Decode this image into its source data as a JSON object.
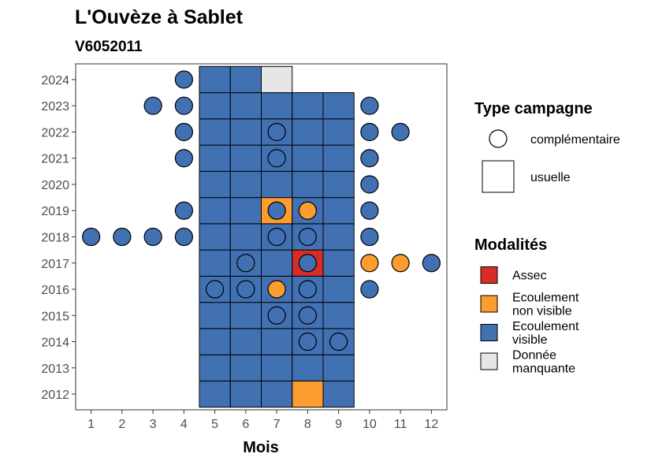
{
  "chart_data": {
    "type": "heatmap",
    "title": "L'Ouvèze à Sablet",
    "subtitle": "V6052011",
    "xlabel": "Mois",
    "ylabel": "",
    "x_ticks": [
      "1",
      "2",
      "3",
      "4",
      "5",
      "6",
      "7",
      "8",
      "9",
      "10",
      "11",
      "12"
    ],
    "y_ticks": [
      "2012",
      "2013",
      "2014",
      "2015",
      "2016",
      "2017",
      "2018",
      "2019",
      "2020",
      "2021",
      "2022",
      "2023",
      "2024"
    ],
    "xlim": [
      0.5,
      12.5
    ],
    "ylim": [
      2011.4,
      2024.6
    ],
    "grid": false,
    "colors": {
      "Assec": "#d62d27",
      "Ecoulement non visible": "#fd9c2f",
      "Ecoulement visible": "#4271b3",
      "Donnée manquante": "#e6e6e6"
    },
    "usuelle": [
      {
        "year": 2012,
        "month": 5,
        "modalite": "Ecoulement visible"
      },
      {
        "year": 2012,
        "month": 6,
        "modalite": "Ecoulement visible"
      },
      {
        "year": 2012,
        "month": 7,
        "modalite": "Ecoulement visible"
      },
      {
        "year": 2012,
        "month": 8,
        "modalite": "Ecoulement non visible"
      },
      {
        "year": 2012,
        "month": 9,
        "modalite": "Ecoulement visible"
      },
      {
        "year": 2013,
        "month": 5,
        "modalite": "Ecoulement visible"
      },
      {
        "year": 2013,
        "month": 6,
        "modalite": "Ecoulement visible"
      },
      {
        "year": 2013,
        "month": 7,
        "modalite": "Ecoulement visible"
      },
      {
        "year": 2013,
        "month": 8,
        "modalite": "Ecoulement visible"
      },
      {
        "year": 2013,
        "month": 9,
        "modalite": "Ecoulement visible"
      },
      {
        "year": 2014,
        "month": 5,
        "modalite": "Ecoulement visible"
      },
      {
        "year": 2014,
        "month": 6,
        "modalite": "Ecoulement visible"
      },
      {
        "year": 2014,
        "month": 7,
        "modalite": "Ecoulement visible"
      },
      {
        "year": 2014,
        "month": 8,
        "modalite": "Ecoulement visible"
      },
      {
        "year": 2014,
        "month": 9,
        "modalite": "Ecoulement visible"
      },
      {
        "year": 2015,
        "month": 5,
        "modalite": "Ecoulement visible"
      },
      {
        "year": 2015,
        "month": 6,
        "modalite": "Ecoulement visible"
      },
      {
        "year": 2015,
        "month": 7,
        "modalite": "Ecoulement visible"
      },
      {
        "year": 2015,
        "month": 8,
        "modalite": "Ecoulement visible"
      },
      {
        "year": 2015,
        "month": 9,
        "modalite": "Ecoulement visible"
      },
      {
        "year": 2016,
        "month": 5,
        "modalite": "Ecoulement visible"
      },
      {
        "year": 2016,
        "month": 6,
        "modalite": "Ecoulement visible"
      },
      {
        "year": 2016,
        "month": 7,
        "modalite": "Ecoulement visible"
      },
      {
        "year": 2016,
        "month": 8,
        "modalite": "Ecoulement visible"
      },
      {
        "year": 2016,
        "month": 9,
        "modalite": "Ecoulement visible"
      },
      {
        "year": 2017,
        "month": 5,
        "modalite": "Ecoulement visible"
      },
      {
        "year": 2017,
        "month": 6,
        "modalite": "Ecoulement visible"
      },
      {
        "year": 2017,
        "month": 7,
        "modalite": "Ecoulement visible"
      },
      {
        "year": 2017,
        "month": 8,
        "modalite": "Assec"
      },
      {
        "year": 2017,
        "month": 9,
        "modalite": "Ecoulement visible"
      },
      {
        "year": 2018,
        "month": 5,
        "modalite": "Ecoulement visible"
      },
      {
        "year": 2018,
        "month": 6,
        "modalite": "Ecoulement visible"
      },
      {
        "year": 2018,
        "month": 7,
        "modalite": "Ecoulement visible"
      },
      {
        "year": 2018,
        "month": 8,
        "modalite": "Ecoulement visible"
      },
      {
        "year": 2018,
        "month": 9,
        "modalite": "Ecoulement visible"
      },
      {
        "year": 2019,
        "month": 5,
        "modalite": "Ecoulement visible"
      },
      {
        "year": 2019,
        "month": 6,
        "modalite": "Ecoulement visible"
      },
      {
        "year": 2019,
        "month": 7,
        "modalite": "Ecoulement non visible"
      },
      {
        "year": 2019,
        "month": 8,
        "modalite": "Ecoulement visible"
      },
      {
        "year": 2019,
        "month": 9,
        "modalite": "Ecoulement visible"
      },
      {
        "year": 2020,
        "month": 5,
        "modalite": "Ecoulement visible"
      },
      {
        "year": 2020,
        "month": 6,
        "modalite": "Ecoulement visible"
      },
      {
        "year": 2020,
        "month": 7,
        "modalite": "Ecoulement visible"
      },
      {
        "year": 2020,
        "month": 8,
        "modalite": "Ecoulement visible"
      },
      {
        "year": 2020,
        "month": 9,
        "modalite": "Ecoulement visible"
      },
      {
        "year": 2021,
        "month": 5,
        "modalite": "Ecoulement visible"
      },
      {
        "year": 2021,
        "month": 6,
        "modalite": "Ecoulement visible"
      },
      {
        "year": 2021,
        "month": 7,
        "modalite": "Ecoulement visible"
      },
      {
        "year": 2021,
        "month": 8,
        "modalite": "Ecoulement visible"
      },
      {
        "year": 2021,
        "month": 9,
        "modalite": "Ecoulement visible"
      },
      {
        "year": 2022,
        "month": 5,
        "modalite": "Ecoulement visible"
      },
      {
        "year": 2022,
        "month": 6,
        "modalite": "Ecoulement visible"
      },
      {
        "year": 2022,
        "month": 7,
        "modalite": "Ecoulement visible"
      },
      {
        "year": 2022,
        "month": 8,
        "modalite": "Ecoulement visible"
      },
      {
        "year": 2022,
        "month": 9,
        "modalite": "Ecoulement visible"
      },
      {
        "year": 2023,
        "month": 5,
        "modalite": "Ecoulement visible"
      },
      {
        "year": 2023,
        "month": 6,
        "modalite": "Ecoulement visible"
      },
      {
        "year": 2023,
        "month": 7,
        "modalite": "Ecoulement visible"
      },
      {
        "year": 2023,
        "month": 8,
        "modalite": "Ecoulement visible"
      },
      {
        "year": 2023,
        "month": 9,
        "modalite": "Ecoulement visible"
      },
      {
        "year": 2024,
        "month": 5,
        "modalite": "Ecoulement visible"
      },
      {
        "year": 2024,
        "month": 6,
        "modalite": "Ecoulement visible"
      },
      {
        "year": 2024,
        "month": 7,
        "modalite": "Donnée manquante"
      }
    ],
    "complementaire": [
      {
        "year": 2024,
        "month": 4,
        "modalite": "Ecoulement visible"
      },
      {
        "year": 2023,
        "month": 3,
        "modalite": "Ecoulement visible"
      },
      {
        "year": 2023,
        "month": 4,
        "modalite": "Ecoulement visible"
      },
      {
        "year": 2023,
        "month": 10,
        "modalite": "Ecoulement visible"
      },
      {
        "year": 2022,
        "month": 4,
        "modalite": "Ecoulement visible"
      },
      {
        "year": 2022,
        "month": 7,
        "modalite": "Ecoulement visible"
      },
      {
        "year": 2022,
        "month": 10,
        "modalite": "Ecoulement visible"
      },
      {
        "year": 2022,
        "month": 11,
        "modalite": "Ecoulement visible"
      },
      {
        "year": 2021,
        "month": 4,
        "modalite": "Ecoulement visible"
      },
      {
        "year": 2021,
        "month": 7,
        "modalite": "Ecoulement visible"
      },
      {
        "year": 2021,
        "month": 10,
        "modalite": "Ecoulement visible"
      },
      {
        "year": 2020,
        "month": 10,
        "modalite": "Ecoulement visible"
      },
      {
        "year": 2019,
        "month": 4,
        "modalite": "Ecoulement visible"
      },
      {
        "year": 2019,
        "month": 7,
        "modalite": "Ecoulement visible"
      },
      {
        "year": 2019,
        "month": 8,
        "modalite": "Ecoulement non visible"
      },
      {
        "year": 2019,
        "month": 10,
        "modalite": "Ecoulement visible"
      },
      {
        "year": 2018,
        "month": 1,
        "modalite": "Ecoulement visible"
      },
      {
        "year": 2018,
        "month": 2,
        "modalite": "Ecoulement visible"
      },
      {
        "year": 2018,
        "month": 3,
        "modalite": "Ecoulement visible"
      },
      {
        "year": 2018,
        "month": 4,
        "modalite": "Ecoulement visible"
      },
      {
        "year": 2018,
        "month": 7,
        "modalite": "Ecoulement visible"
      },
      {
        "year": 2018,
        "month": 8,
        "modalite": "Ecoulement visible"
      },
      {
        "year": 2018,
        "month": 10,
        "modalite": "Ecoulement visible"
      },
      {
        "year": 2017,
        "month": 6,
        "modalite": "Ecoulement visible"
      },
      {
        "year": 2017,
        "month": 8,
        "modalite": "Ecoulement visible"
      },
      {
        "year": 2017,
        "month": 10,
        "modalite": "Ecoulement non visible"
      },
      {
        "year": 2017,
        "month": 11,
        "modalite": "Ecoulement non visible"
      },
      {
        "year": 2017,
        "month": 12,
        "modalite": "Ecoulement visible"
      },
      {
        "year": 2016,
        "month": 5,
        "modalite": "Ecoulement visible"
      },
      {
        "year": 2016,
        "month": 6,
        "modalite": "Ecoulement visible"
      },
      {
        "year": 2016,
        "month": 7,
        "modalite": "Ecoulement non visible"
      },
      {
        "year": 2016,
        "month": 8,
        "modalite": "Ecoulement visible"
      },
      {
        "year": 2016,
        "month": 10,
        "modalite": "Ecoulement visible"
      },
      {
        "year": 2015,
        "month": 7,
        "modalite": "Ecoulement visible"
      },
      {
        "year": 2015,
        "month": 8,
        "modalite": "Ecoulement visible"
      },
      {
        "year": 2014,
        "month": 8,
        "modalite": "Ecoulement visible"
      },
      {
        "year": 2014,
        "month": 9,
        "modalite": "Ecoulement visible"
      }
    ],
    "legend": {
      "placement": "right",
      "type_title": "Type campagne",
      "type_items": [
        {
          "shape": "circle",
          "label": "complémentaire"
        },
        {
          "shape": "square",
          "label": "usuelle"
        }
      ],
      "mod_title": "Modalités",
      "mod_items": [
        {
          "key": "Assec",
          "lines": [
            "Assec"
          ]
        },
        {
          "key": "Ecoulement non visible",
          "lines": [
            "Ecoulement",
            "non visible"
          ]
        },
        {
          "key": "Ecoulement visible",
          "lines": [
            "Ecoulement",
            "visible"
          ]
        },
        {
          "key": "Donnée manquante",
          "lines": [
            "Donnée",
            "manquante"
          ]
        }
      ]
    }
  }
}
